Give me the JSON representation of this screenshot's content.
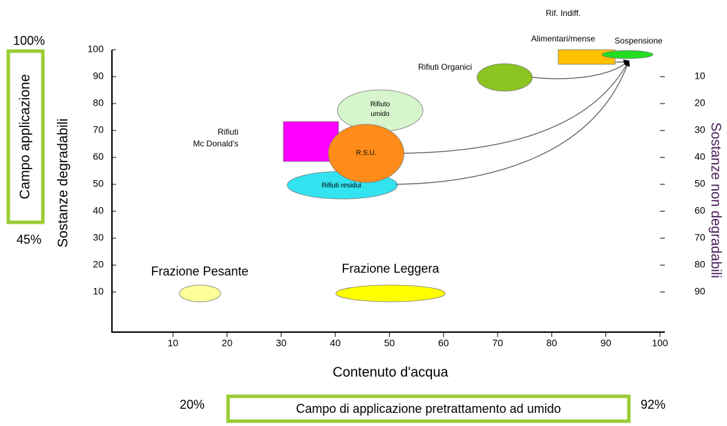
{
  "chart_data": {
    "type": "region",
    "xlabel": "Contenuto d'acqua",
    "ylabel": "Sostanze  degradabili",
    "y2label": "Sostanze non degradabili",
    "xlim": [
      0,
      100
    ],
    "ylim": [
      0,
      100
    ],
    "y2lim": [
      100,
      0
    ],
    "xticks": [
      10,
      20,
      30,
      40,
      50,
      60,
      70,
      80,
      90,
      100
    ],
    "yticks": [
      10,
      20,
      30,
      40,
      50,
      60,
      70,
      80,
      90,
      100
    ],
    "y2ticks": [
      10,
      20,
      30,
      40,
      50,
      60,
      70,
      80,
      90
    ],
    "regions": [
      {
        "name": "Frazione Pesante",
        "shape": "ellipse",
        "color": "#ffff99",
        "x": [
          11.2,
          18.8
        ],
        "y": [
          6.4,
          12.6
        ]
      },
      {
        "name": "Frazione Leggera",
        "shape": "ellipse",
        "color": "#ffff00",
        "x": [
          40.1,
          60.3
        ],
        "y": [
          6.4,
          12.6
        ]
      },
      {
        "name": "Rifiuti residui",
        "shape": "ellipse",
        "color": "#33e3f0",
        "x": [
          31.1,
          51.5
        ],
        "y": [
          44.6,
          54.8
        ]
      },
      {
        "name": "Rifiuti\nMc Donald's",
        "shape": "rect",
        "color": "#ff00ff",
        "x": [
          30.4,
          40.6
        ],
        "y": [
          58.5,
          73.3
        ]
      },
      {
        "name": "Rifiuto\numido",
        "shape": "ellipse",
        "color": "#d6f5cc",
        "x": [
          40.4,
          56.2
        ],
        "y": [
          69.7,
          85.1
        ]
      },
      {
        "name": "R.S.U.",
        "shape": "ellipse",
        "color": "#ff8c1a",
        "x": [
          38.7,
          52.7
        ],
        "y": [
          50.7,
          72.3
        ]
      },
      {
        "name": "Rifiuti Organici",
        "shape": "ellipse",
        "color": "#8cc421",
        "x": [
          66.2,
          76.4
        ],
        "y": [
          84.6,
          94.8
        ]
      },
      {
        "name": "Rif. Indiff.\nAlimentari/mense",
        "shape": "rect",
        "color": "#ffc000",
        "x": [
          81.2,
          91.7
        ],
        "y": [
          94.6,
          100
        ]
      },
      {
        "name": "Sospensione",
        "shape": "ellipse",
        "color": "#22dd22",
        "x": [
          89.3,
          98.7
        ],
        "y": [
          96.7,
          99.7
        ]
      }
    ],
    "annotations": {
      "y_top": "100%",
      "y_bottom": "45%",
      "y_box": "Campo applicazione",
      "x_left": "20%",
      "x_right": "92%",
      "x_box": "Campo di applicazione pretrattamento ad umido"
    }
  }
}
